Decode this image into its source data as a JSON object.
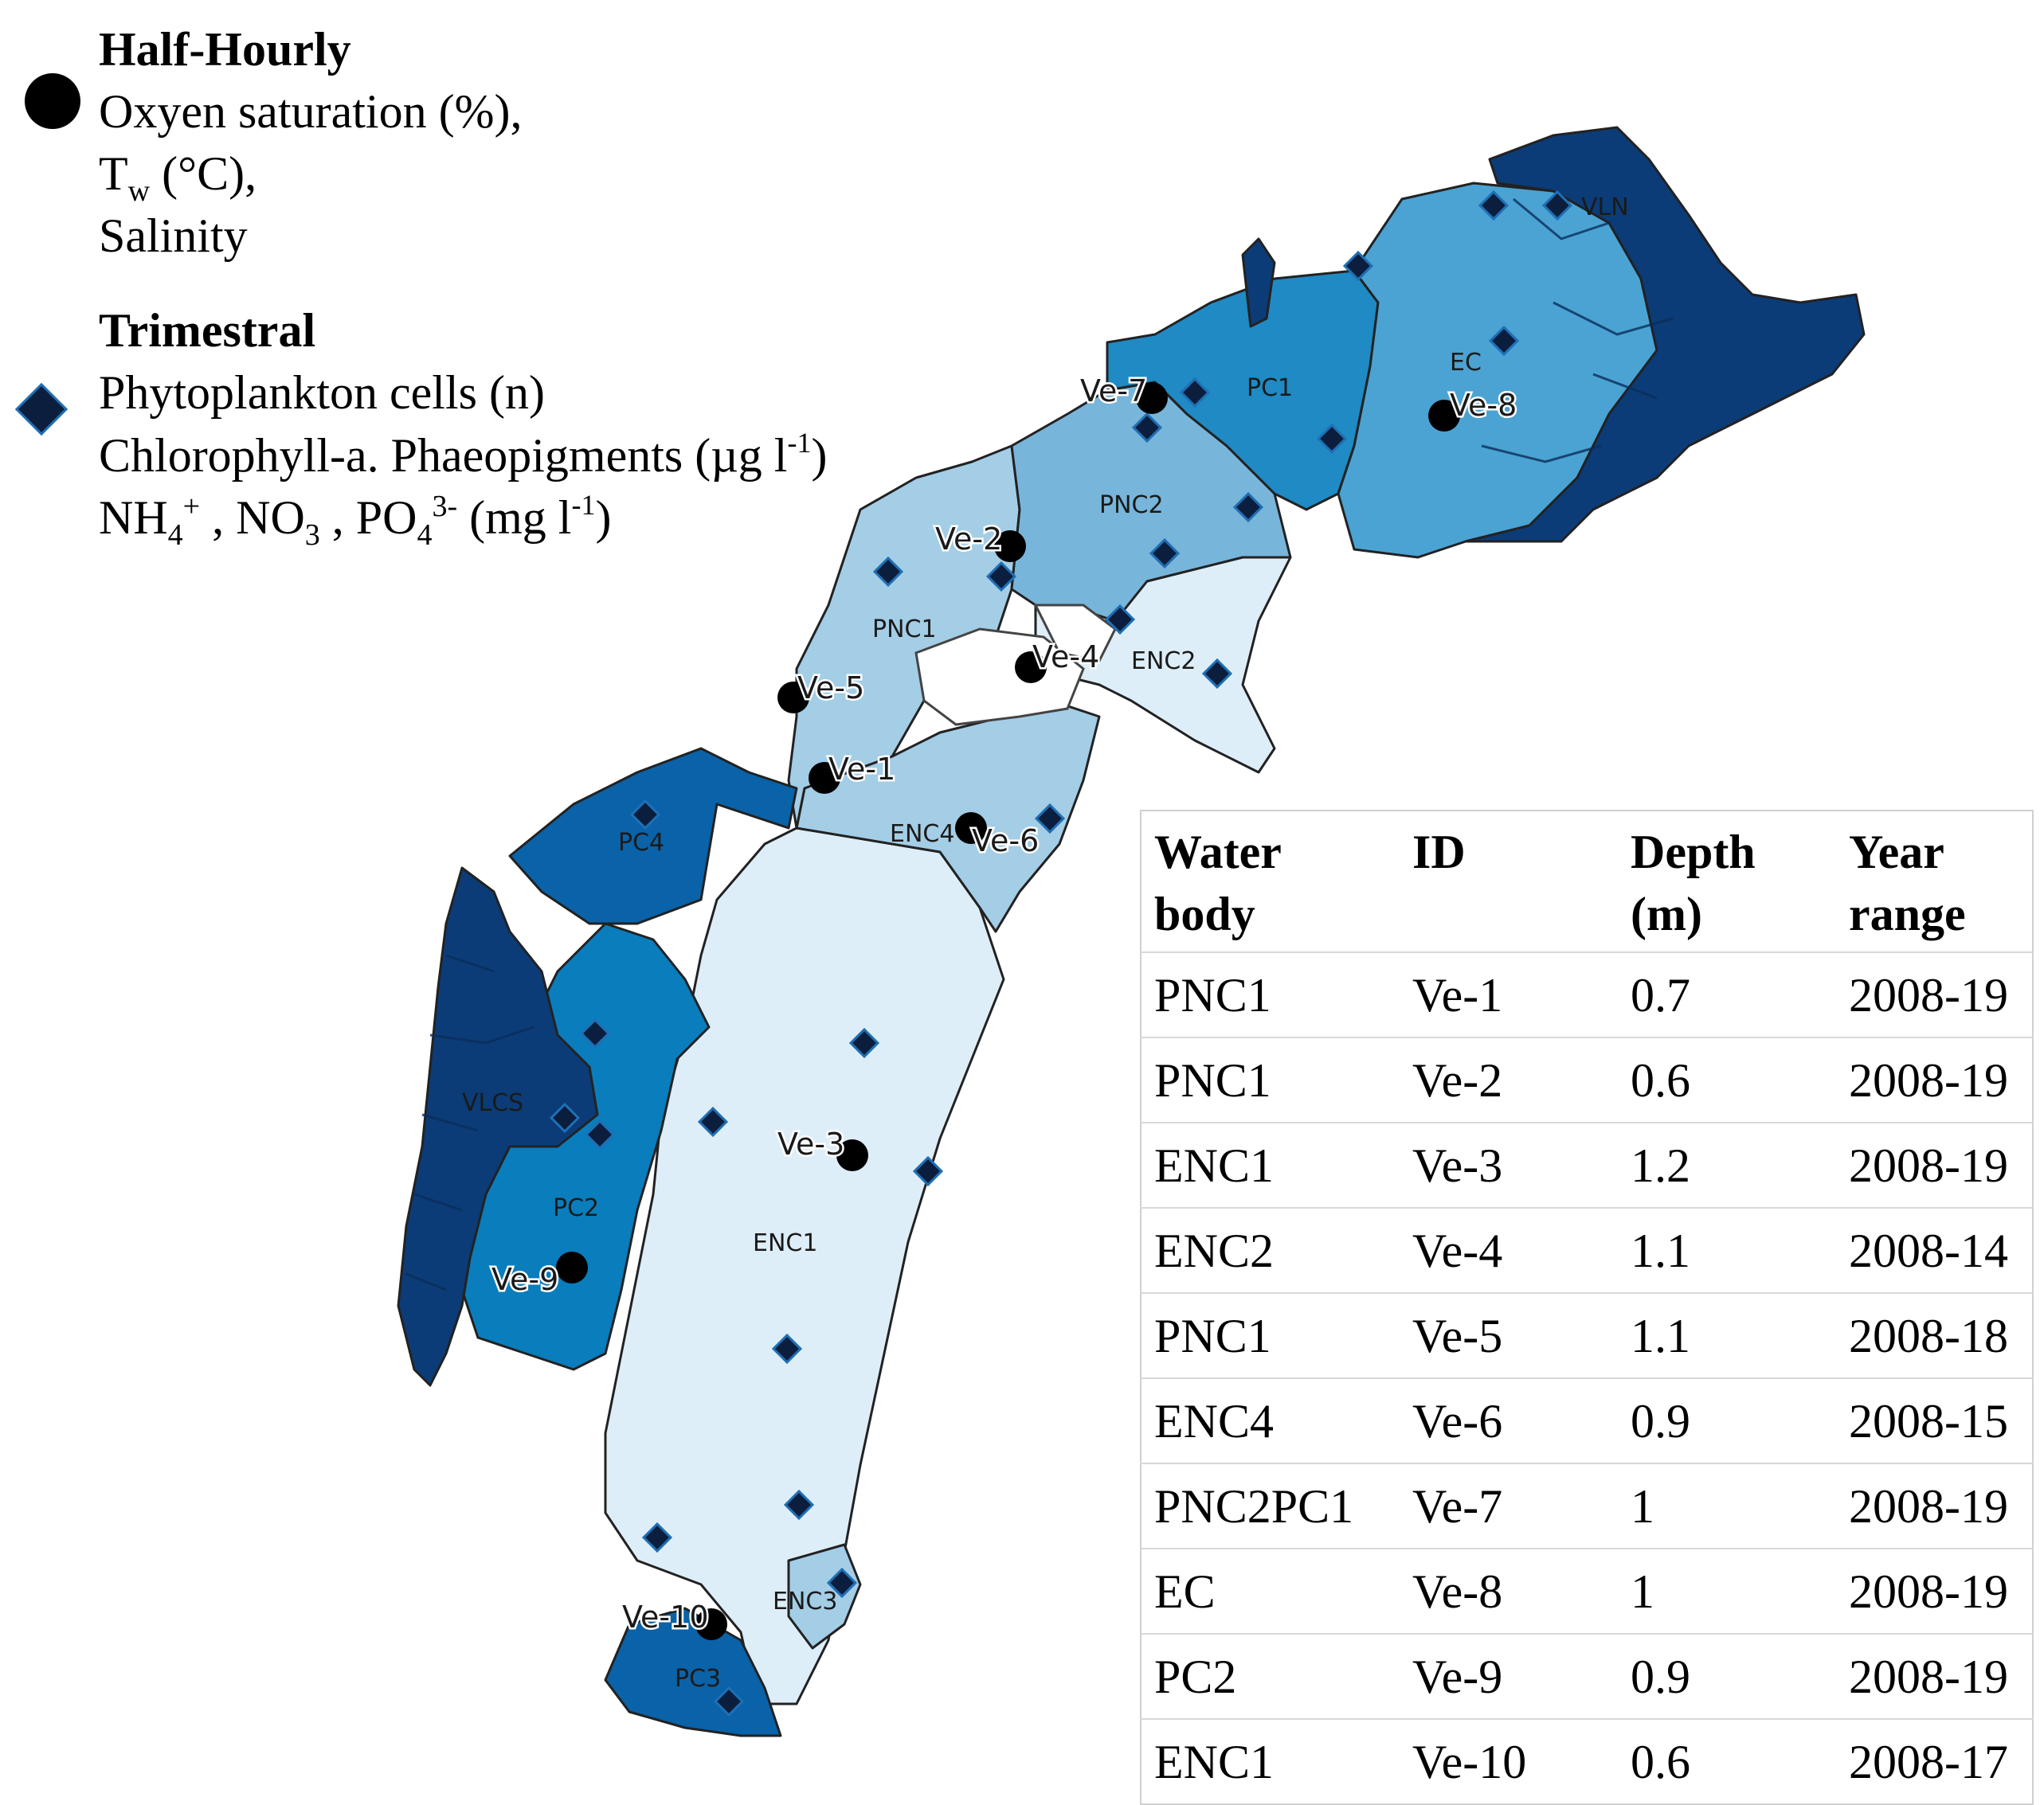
{
  "legend": {
    "half_hourly": {
      "title": "Half-Hourly",
      "line1": "Oxyen saturation (%),",
      "tw_main": "T",
      "tw_sub": "w",
      "tw_rest": " (°C),",
      "line3": "Salinity"
    },
    "trimestral": {
      "title": "Trimestral",
      "line1": "Phytoplankton cells (n)",
      "line2_main": "Chlorophyll-a. Phaeopigments (µg l",
      "line2_sup": "-1",
      "line2_end": ")",
      "nh4_main": "NH",
      "nh4_sub": "4",
      "nh4_sup": "+",
      "no3_main": " , NO",
      "no3_sub": "3",
      "po4_main": " , PO",
      "po4_sub": "4",
      "po4_sup": "3-",
      "unit_main": "  (mg l",
      "unit_sup": "-1",
      "unit_end": ")"
    }
  },
  "zones": {
    "VLN": "VLN",
    "EC": "EC",
    "PC1": "PC1",
    "PNC2": "PNC2",
    "PNC1": "PNC1",
    "ENC2": "ENC2",
    "ENC4": "ENC4",
    "PC4": "PC4",
    "VLCS": "VLCS",
    "PC2": "PC2",
    "ENC1": "ENC1",
    "ENC3": "ENC3",
    "PC3": "PC3"
  },
  "stations": {
    "ve1": "Ve-1",
    "ve2": "Ve-2",
    "ve3": "Ve-3",
    "ve4": "Ve-4",
    "ve5": "Ve-5",
    "ve6": "Ve-6",
    "ve7": "Ve-7",
    "ve8": "Ve-8",
    "ve9": "Ve-9",
    "ve10": "Ve-10"
  },
  "colors": {
    "darkest": "#0b3c77",
    "dark": "#0a62a8",
    "medium": "#1f8ac3",
    "mid_light": "#55a9d5",
    "light": "#a4cde6",
    "lightest": "#deeef8"
  },
  "table": {
    "headers": [
      "Water body",
      "ID",
      "Depth (m)",
      "Year range"
    ],
    "rows": [
      [
        "PNC1",
        "Ve-1",
        "0.7",
        "2008-19"
      ],
      [
        "PNC1",
        "Ve-2",
        "0.6",
        "2008-19"
      ],
      [
        "ENC1",
        "Ve-3",
        "1.2",
        "2008-19"
      ],
      [
        "ENC2",
        "Ve-4",
        "1.1",
        "2008-14"
      ],
      [
        "PNC1",
        "Ve-5",
        "1.1",
        "2008-18"
      ],
      [
        "ENC4",
        "Ve-6",
        "0.9",
        "2008-15"
      ],
      [
        "PNC2PC1",
        "Ve-7",
        "1",
        "2008-19"
      ],
      [
        "EC",
        "Ve-8",
        "1",
        "2008-19"
      ],
      [
        "PC2",
        "Ve-9",
        "0.9",
        "2008-19"
      ],
      [
        "ENC1",
        "Ve-10",
        "0.6",
        "2008-17"
      ]
    ]
  }
}
